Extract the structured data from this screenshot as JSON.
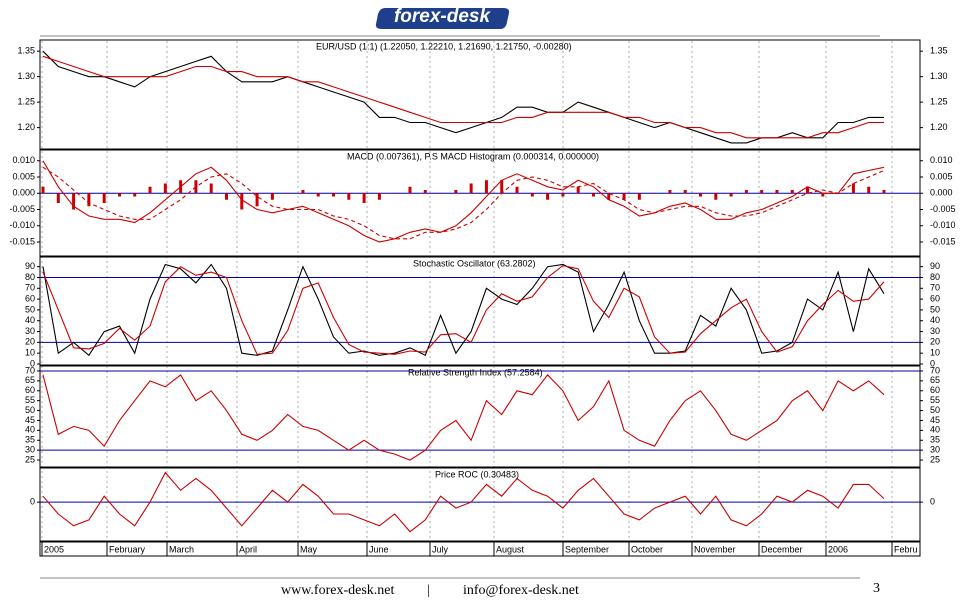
{
  "header": {
    "logo": "forex-desk"
  },
  "footer": {
    "website": "www.forex-desk.net",
    "separator": "|",
    "email": "info@forex-desk.net",
    "page": "3"
  },
  "xaxis": {
    "labels": [
      "2005",
      "February",
      "March",
      "April",
      "May",
      "June",
      "July",
      "August",
      "September",
      "October",
      "November",
      "December",
      "2006",
      "Febru"
    ]
  },
  "chart_data": [
    {
      "type": "line",
      "title": "EUR/USD (1:1) (1.22050, 1.22210, 1.21690, 1.21750, -0.00280)",
      "ylim": [
        1.16,
        1.37
      ],
      "yticks": [
        {
          "value": 1.2,
          "label": "1.20"
        },
        1.25,
        {
          "value": 1.3,
          "label": "1.30"
        },
        1.35
      ],
      "series": [
        {
          "color": "#000000",
          "values": [
            1.35,
            1.32,
            1.31,
            1.3,
            1.3,
            1.29,
            1.28,
            1.3,
            1.31,
            1.32,
            1.33,
            1.34,
            1.31,
            1.29,
            1.29,
            1.29,
            1.3,
            1.29,
            1.28,
            1.27,
            1.26,
            1.25,
            1.22,
            1.22,
            1.21,
            1.21,
            1.2,
            1.19,
            1.2,
            1.21,
            1.22,
            1.24,
            1.24,
            1.23,
            1.23,
            1.25,
            1.24,
            1.23,
            1.22,
            1.21,
            1.2,
            1.21,
            1.2,
            1.19,
            1.18,
            1.17,
            1.17,
            1.18,
            1.18,
            1.19,
            1.18,
            1.18,
            1.21,
            1.21,
            1.22,
            1.22
          ]
        },
        {
          "color": "#cc0000",
          "values": [
            1.34,
            1.33,
            1.32,
            1.31,
            1.3,
            1.3,
            1.3,
            1.3,
            1.3,
            1.31,
            1.32,
            1.32,
            1.31,
            1.31,
            1.3,
            1.3,
            1.3,
            1.29,
            1.29,
            1.28,
            1.27,
            1.26,
            1.25,
            1.24,
            1.23,
            1.22,
            1.21,
            1.21,
            1.21,
            1.21,
            1.21,
            1.22,
            1.22,
            1.23,
            1.23,
            1.23,
            1.23,
            1.23,
            1.22,
            1.22,
            1.21,
            1.21,
            1.2,
            1.2,
            1.19,
            1.19,
            1.18,
            1.18,
            1.18,
            1.18,
            1.18,
            1.19,
            1.19,
            1.2,
            1.21,
            1.21
          ]
        }
      ]
    },
    {
      "type": "line",
      "title": "MACD (0.007361), P.S MACD Histogram (0.000314, 0.000000)",
      "ylim": [
        -0.019,
        0.013
      ],
      "yticks": [
        {
          "value": 0.01,
          "label": "0.010"
        },
        0.005,
        {
          "value": 0,
          "label": "0.000"
        },
        -0.005,
        {
          "value": -0.01,
          "label": "-0.010"
        },
        -0.015
      ],
      "hlines": [
        0
      ],
      "hline_color": "#0000aa",
      "series": [
        {
          "color": "#cc0000",
          "kind": "bar",
          "values": [
            0.002,
            -0.003,
            -0.005,
            -0.004,
            -0.003,
            -0.001,
            -0.001,
            0.002,
            0.003,
            0.004,
            0.004,
            0.003,
            -0.002,
            -0.005,
            -0.004,
            -0.002,
            0,
            0.001,
            -0.001,
            -0.001,
            -0.002,
            -0.003,
            -0.002,
            0,
            0.002,
            0.001,
            0,
            0.001,
            0.003,
            0.004,
            0.004,
            0.002,
            -0.001,
            -0.002,
            -0.001,
            0.002,
            -0.001,
            -0.002,
            -0.002,
            -0.002,
            0,
            0.001,
            0.001,
            -0.001,
            -0.002,
            -0.001,
            0.001,
            0.001,
            0.001,
            0.001,
            0.002,
            -0.001,
            0,
            0.003,
            0.002,
            0.001
          ]
        },
        {
          "color": "#cc0000",
          "values": [
            0.01,
            0.002,
            -0.004,
            -0.007,
            -0.008,
            -0.008,
            -0.009,
            -0.006,
            -0.002,
            0.002,
            0.006,
            0.008,
            0.004,
            -0.002,
            -0.005,
            -0.006,
            -0.005,
            -0.004,
            -0.006,
            -0.008,
            -0.01,
            -0.013,
            -0.015,
            -0.014,
            -0.012,
            -0.011,
            -0.012,
            -0.01,
            -0.006,
            -0.001,
            0.004,
            0.006,
            0.004,
            0.002,
            0.001,
            0.004,
            0.002,
            -0.002,
            -0.004,
            -0.007,
            -0.006,
            -0.004,
            -0.003,
            -0.005,
            -0.008,
            -0.008,
            -0.006,
            -0.005,
            -0.003,
            -0.001,
            0.002,
            0.0,
            0.0,
            0.006,
            0.007,
            0.008
          ]
        },
        {
          "color": "#cc0000",
          "dashed": true,
          "values": [
            0.008,
            0.005,
            0.001,
            -0.003,
            -0.005,
            -0.007,
            -0.008,
            -0.008,
            -0.005,
            -0.002,
            0.002,
            0.005,
            0.006,
            0.003,
            -0.001,
            -0.004,
            -0.005,
            -0.005,
            -0.005,
            -0.007,
            -0.008,
            -0.01,
            -0.013,
            -0.014,
            -0.014,
            -0.012,
            -0.012,
            -0.011,
            -0.009,
            -0.005,
            0.0,
            0.004,
            0.005,
            0.004,
            0.002,
            0.002,
            0.003,
            0.0,
            -0.002,
            -0.005,
            -0.006,
            -0.005,
            -0.004,
            -0.004,
            -0.006,
            -0.007,
            -0.007,
            -0.006,
            -0.004,
            -0.002,
            0.0,
            0.001,
            0.0,
            0.003,
            0.005,
            0.007
          ]
        }
      ]
    },
    {
      "type": "line",
      "title": "Stochastic Oscillator (63.2802)",
      "ylim": [
        0,
        98
      ],
      "yticks": [
        0,
        10,
        20,
        30,
        40,
        50,
        60,
        70,
        80,
        90
      ],
      "hlines": [
        80,
        20
      ],
      "hline_color": "#0000aa",
      "series": [
        {
          "color": "#000000",
          "values": [
            90,
            10,
            20,
            8,
            30,
            35,
            10,
            60,
            92,
            88,
            75,
            92,
            70,
            10,
            8,
            12,
            50,
            90,
            60,
            25,
            10,
            12,
            8,
            10,
            15,
            8,
            45,
            10,
            30,
            70,
            60,
            55,
            70,
            90,
            92,
            85,
            30,
            55,
            85,
            40,
            10,
            10,
            12,
            45,
            35,
            70,
            50,
            10,
            12,
            20,
            60,
            50,
            85,
            30,
            88,
            65
          ]
        },
        {
          "color": "#cc0000",
          "values": [
            85,
            50,
            15,
            14,
            19,
            33,
            22,
            35,
            76,
            90,
            82,
            85,
            80,
            40,
            9,
            10,
            31,
            70,
            75,
            43,
            18,
            11,
            10,
            9,
            12,
            11,
            27,
            28,
            20,
            50,
            65,
            58,
            62,
            80,
            91,
            88,
            58,
            43,
            70,
            62,
            25,
            10,
            11,
            28,
            40,
            52,
            60,
            30,
            11,
            16,
            40,
            55,
            68,
            58,
            60,
            76
          ]
        }
      ]
    },
    {
      "type": "line",
      "title": "Relative Strength Index (57.2584)",
      "ylim": [
        22,
        72
      ],
      "yticks": [
        25,
        30,
        35,
        40,
        45,
        50,
        55,
        60,
        65,
        70
      ],
      "hlines": [
        70,
        30
      ],
      "hline_color": "#0000aa",
      "series": [
        {
          "color": "#cc0000",
          "values": [
            68,
            38,
            42,
            40,
            32,
            45,
            55,
            65,
            62,
            68,
            55,
            60,
            50,
            38,
            35,
            40,
            48,
            42,
            40,
            35,
            30,
            35,
            30,
            28,
            25,
            30,
            40,
            45,
            35,
            55,
            48,
            60,
            58,
            68,
            60,
            45,
            52,
            65,
            40,
            35,
            32,
            45,
            55,
            60,
            50,
            38,
            35,
            40,
            45,
            55,
            60,
            50,
            65,
            60,
            65,
            58
          ]
        }
      ]
    },
    {
      "type": "line",
      "title": "Price ROC (0.30483)",
      "ylim": [
        -3.2,
        2.8
      ],
      "yticks": [
        0
      ],
      "hlines": [
        0
      ],
      "hline_color": "#0000aa",
      "series": [
        {
          "color": "#cc0000",
          "values": [
            0.5,
            -1,
            -2,
            -1.5,
            0.5,
            -1,
            -2,
            0,
            2.5,
            1,
            2,
            1,
            -0.5,
            -2,
            -0.5,
            1,
            0,
            1.5,
            0.5,
            -1,
            -1,
            -1.5,
            -2,
            -1,
            -2.5,
            -1.5,
            0.5,
            -0.5,
            0,
            1.5,
            0.5,
            2,
            1,
            0.5,
            -0.5,
            1,
            2,
            0.5,
            -1,
            -1.5,
            -0.5,
            0,
            0.5,
            -1,
            0.5,
            -1.5,
            -2,
            -1,
            0.5,
            0,
            1,
            0.5,
            -0.5,
            1.5,
            1.5,
            0.3
          ]
        }
      ]
    }
  ]
}
